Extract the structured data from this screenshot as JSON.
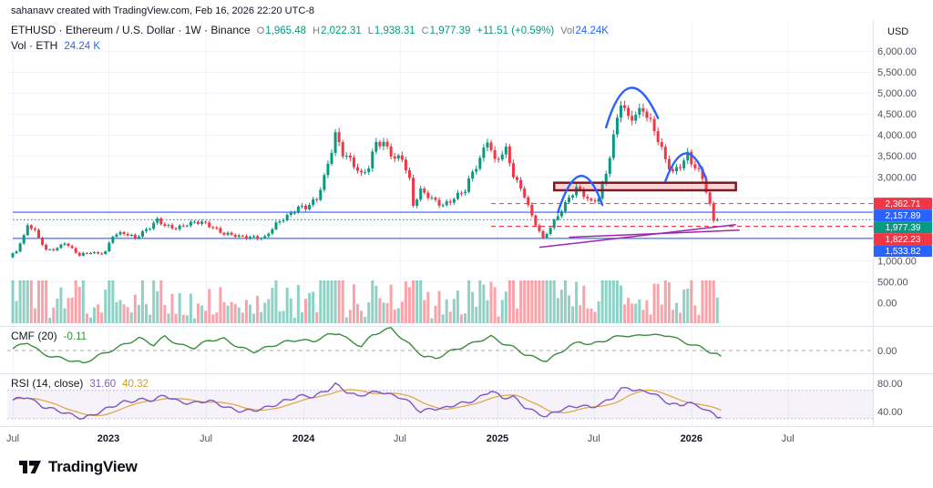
{
  "attribution": "sahanavv created with TradingView.com, Feb 16, 2026 22:20 UTC-8",
  "symbol_header": {
    "title": "ETHUSD · Ethereum / U.S. Dollar · 1W · Binance",
    "ohlc": [
      {
        "label": "O",
        "value": "1,965.48"
      },
      {
        "label": "H",
        "value": "2,022.31"
      },
      {
        "label": "L",
        "value": "1,938.31"
      },
      {
        "label": "C",
        "value": "1,977.39"
      }
    ],
    "change": "+11.51 (+0.59%)",
    "vol_label": "Vol",
    "vol_value": "24.24K"
  },
  "volume_row": {
    "label": "Vol · ETH",
    "value": "24.24 K"
  },
  "indicators": {
    "cmf": {
      "label": "CMF (20)",
      "value": "-0.11"
    },
    "rsi": {
      "label": "RSI (14, close)",
      "value": "31.60",
      "ma_value": "40.32"
    }
  },
  "logo_text": "TradingView",
  "axes": {
    "currency": "USD",
    "price_ticks": [
      {
        "price": 6000,
        "label": "6,000.00"
      },
      {
        "price": 5500,
        "label": "5,500.00"
      },
      {
        "price": 5000,
        "label": "5,000.00"
      },
      {
        "price": 4500,
        "label": "4,500.00"
      },
      {
        "price": 4000,
        "label": "4,000.00"
      },
      {
        "price": 3500,
        "label": "3,500.00"
      },
      {
        "price": 3000,
        "label": "3,000.00"
      },
      {
        "price": 1000,
        "label": "1,000.00"
      },
      {
        "price": 500,
        "label": "500.00"
      },
      {
        "price": 0,
        "label": "0.00"
      }
    ],
    "grid_prices": [
      500,
      1000,
      1500,
      2000,
      2500,
      3000,
      3500,
      4000,
      4500,
      5000,
      5500,
      6000
    ],
    "cmf_ticks": [
      {
        "label": "0.00",
        "value": 0
      }
    ],
    "rsi_ticks": [
      {
        "label": "80.00",
        "value": 80
      },
      {
        "label": "40.00",
        "value": 40
      }
    ],
    "time_ticks": [
      {
        "label": "Jul",
        "week": 0,
        "year": false
      },
      {
        "label": "2023",
        "week": 25.8,
        "year": true
      },
      {
        "label": "Jul",
        "week": 52.1,
        "year": false
      },
      {
        "label": "2024",
        "week": 78.4,
        "year": true
      },
      {
        "label": "Jul",
        "week": 104.4,
        "year": false
      },
      {
        "label": "2025",
        "week": 130.7,
        "year": true
      },
      {
        "label": "Jul",
        "week": 156.7,
        "year": false
      },
      {
        "label": "2026",
        "week": 183.0,
        "year": true
      },
      {
        "label": "Jul",
        "week": 209.0,
        "year": false
      }
    ]
  },
  "price_lines": [
    {
      "label": "2,362.71",
      "price": 2362.71,
      "color": "#f23645",
      "style": "dashed",
      "from_week": 129
    },
    {
      "label": "2,157.89",
      "price": 2157.89,
      "color": "#2962ff",
      "style": "solid",
      "from_week": 0
    },
    {
      "label": "1,977.39",
      "price": 1977.39,
      "color": "#089981",
      "style": "dotted",
      "from_week": 0
    },
    {
      "label": "1,822.23",
      "price": 1822.23,
      "color": "#f23645",
      "style": "dashed",
      "from_week": 129
    },
    {
      "label": "1,533.82",
      "price": 1533.82,
      "color": "#2962ff",
      "style": "solid",
      "from_week": 0
    }
  ],
  "drawings": {
    "rectangle": {
      "from_week": 146,
      "to_week": 195,
      "top_price": 2860,
      "bottom_price": 2680
    },
    "arcs": [
      {
        "from_week": 147,
        "from_price": 2150,
        "apex_week": 153,
        "apex_price": 3020,
        "to_week": 159,
        "to_price": 2330
      },
      {
        "from_week": 160,
        "from_price": 4180,
        "apex_week": 166.5,
        "apex_price": 5120,
        "to_week": 174,
        "to_price": 4400
      },
      {
        "from_week": 176,
        "from_price": 2900,
        "apex_week": 181.5,
        "apex_price": 3560,
        "to_week": 187,
        "to_price": 2950
      }
    ],
    "trendlines": [
      {
        "from_week": 142,
        "from_price": 1320,
        "to_week": 195,
        "to_price": 1860
      },
      {
        "from_week": 150,
        "from_price": 1560,
        "to_week": 196,
        "to_price": 1730
      }
    ]
  },
  "chart_data": {
    "type": "candlestick",
    "title": "ETHUSD · Ethereum / U.S. Dollar · 1W · Binance",
    "xlabel": "time (weekly, Jul 2022 - Feb 2026, axis extends to Jul 2026)",
    "ylabel": "price (USD)",
    "ylim": [
      0,
      6500
    ],
    "grid": true,
    "last_candle": {
      "open": 1965.48,
      "high": 2022.31,
      "low": 1938.31,
      "close": 1977.39,
      "change": "+11.51 (+0.59%)",
      "volume": "24.24 K"
    },
    "price_path_weekly_anchors": [
      [
        0,
        1060
      ],
      [
        2,
        1250
      ],
      [
        4,
        1600
      ],
      [
        5,
        1900
      ],
      [
        7,
        1700
      ],
      [
        10,
        1230
      ],
      [
        13,
        1300
      ],
      [
        15,
        1460
      ],
      [
        17,
        1280
      ],
      [
        19,
        1120
      ],
      [
        22,
        1200
      ],
      [
        24,
        1180
      ],
      [
        26,
        1230
      ],
      [
        28,
        1600
      ],
      [
        31,
        1640
      ],
      [
        34,
        1560
      ],
      [
        36,
        1700
      ],
      [
        38,
        1800
      ],
      [
        40,
        1950
      ],
      [
        42,
        1820
      ],
      [
        45,
        1800
      ],
      [
        48,
        1880
      ],
      [
        52,
        1900
      ],
      [
        55,
        1820
      ],
      [
        58,
        1650
      ],
      [
        62,
        1560
      ],
      [
        66,
        1580
      ],
      [
        69,
        1550
      ],
      [
        72,
        1850
      ],
      [
        75,
        2080
      ],
      [
        78,
        2300
      ],
      [
        80,
        2250
      ],
      [
        83,
        2450
      ],
      [
        85,
        3000
      ],
      [
        87,
        3700
      ],
      [
        88,
        4050
      ],
      [
        90,
        3550
      ],
      [
        93,
        3250
      ],
      [
        95,
        3050
      ],
      [
        97,
        3300
      ],
      [
        99,
        3850
      ],
      [
        101,
        3750
      ],
      [
        104,
        3400
      ],
      [
        106,
        3500
      ],
      [
        108,
        2950
      ],
      [
        109,
        2350
      ],
      [
        111,
        2650
      ],
      [
        114,
        2450
      ],
      [
        117,
        2350
      ],
      [
        120,
        2500
      ],
      [
        123,
        2650
      ],
      [
        125,
        3100
      ],
      [
        127,
        3450
      ],
      [
        129,
        3950
      ],
      [
        131,
        3350
      ],
      [
        134,
        3600
      ],
      [
        136,
        3050
      ],
      [
        139,
        2600
      ],
      [
        141,
        2050
      ],
      [
        144,
        1500
      ],
      [
        146,
        1800
      ],
      [
        149,
        2250
      ],
      [
        151,
        2500
      ],
      [
        153,
        2700
      ],
      [
        155,
        2550
      ],
      [
        157,
        2400
      ],
      [
        159,
        2550
      ],
      [
        161,
        3100
      ],
      [
        163,
        3900
      ],
      [
        165,
        4750
      ],
      [
        167,
        4400
      ],
      [
        169,
        4550
      ],
      [
        171,
        4650
      ],
      [
        173,
        4250
      ],
      [
        175,
        3850
      ],
      [
        177,
        3400
      ],
      [
        179,
        3150
      ],
      [
        181,
        3300
      ],
      [
        183,
        3500
      ],
      [
        184,
        3300
      ],
      [
        186,
        3100
      ],
      [
        187,
        2950
      ],
      [
        188,
        2700
      ],
      [
        189,
        2350
      ],
      [
        190,
        1965
      ],
      [
        191,
        1977
      ]
    ],
    "volume_spike_weeks": {
      "4": 1.5,
      "5": 1.6,
      "9": 1.5,
      "19": 1.9,
      "40": 1.3,
      "75": 1.3,
      "86": 1.5,
      "87": 1.7,
      "88": 1.6,
      "99": 1.4,
      "108": 1.6,
      "109": 1.8,
      "129": 1.5,
      "141": 1.4,
      "144": 1.7,
      "163": 1.4,
      "165": 1.5,
      "183": 1.2,
      "188": 1.5,
      "189": 2.2,
      "190": 2.6
    },
    "cmf_20_anchors": [
      [
        0,
        0.02
      ],
      [
        4,
        0.15
      ],
      [
        8,
        -0.05
      ],
      [
        12,
        -0.12
      ],
      [
        16,
        -0.2
      ],
      [
        19,
        -0.26
      ],
      [
        23,
        -0.1
      ],
      [
        26,
        0.0
      ],
      [
        30,
        0.12
      ],
      [
        34,
        0.22
      ],
      [
        38,
        0.1
      ],
      [
        41,
        0.27
      ],
      [
        45,
        0.12
      ],
      [
        49,
        0.05
      ],
      [
        53,
        0.18
      ],
      [
        57,
        0.22
      ],
      [
        61,
        0.08
      ],
      [
        65,
        -0.02
      ],
      [
        69,
        0.05
      ],
      [
        73,
        0.15
      ],
      [
        77,
        0.22
      ],
      [
        81,
        0.18
      ],
      [
        85,
        0.28
      ],
      [
        88,
        0.32
      ],
      [
        91,
        0.18
      ],
      [
        94,
        0.1
      ],
      [
        97,
        0.3
      ],
      [
        100,
        0.38
      ],
      [
        102,
        0.4
      ],
      [
        105,
        0.22
      ],
      [
        108,
        0.05
      ],
      [
        111,
        -0.1
      ],
      [
        114,
        -0.14
      ],
      [
        117,
        -0.05
      ],
      [
        120,
        0.02
      ],
      [
        123,
        0.1
      ],
      [
        126,
        0.2
      ],
      [
        129,
        0.28
      ],
      [
        132,
        0.15
      ],
      [
        135,
        0.05
      ],
      [
        138,
        -0.08
      ],
      [
        141,
        -0.15
      ],
      [
        144,
        -0.18
      ],
      [
        147,
        -0.05
      ],
      [
        150,
        0.08
      ],
      [
        153,
        0.15
      ],
      [
        156,
        0.1
      ],
      [
        159,
        0.18
      ],
      [
        162,
        0.26
      ],
      [
        165,
        0.3
      ],
      [
        168,
        0.26
      ],
      [
        171,
        0.3
      ],
      [
        174,
        0.27
      ],
      [
        177,
        0.3
      ],
      [
        180,
        0.2
      ],
      [
        183,
        0.12
      ],
      [
        186,
        0.04
      ],
      [
        188,
        -0.04
      ],
      [
        190,
        -0.09
      ],
      [
        191,
        -0.11
      ]
    ],
    "cmf_last": -0.11,
    "rsi_14_anchors": [
      [
        0,
        55
      ],
      [
        4,
        62
      ],
      [
        8,
        48
      ],
      [
        12,
        40
      ],
      [
        16,
        35
      ],
      [
        19,
        32
      ],
      [
        23,
        38
      ],
      [
        26,
        44
      ],
      [
        30,
        54
      ],
      [
        34,
        58
      ],
      [
        38,
        55
      ],
      [
        41,
        62
      ],
      [
        45,
        55
      ],
      [
        49,
        52
      ],
      [
        53,
        54
      ],
      [
        57,
        48
      ],
      [
        61,
        42
      ],
      [
        65,
        40
      ],
      [
        69,
        46
      ],
      [
        73,
        56
      ],
      [
        77,
        61
      ],
      [
        81,
        60
      ],
      [
        85,
        72
      ],
      [
        87,
        80
      ],
      [
        90,
        68
      ],
      [
        93,
        60
      ],
      [
        96,
        66
      ],
      [
        99,
        70
      ],
      [
        102,
        64
      ],
      [
        105,
        58
      ],
      [
        108,
        48
      ],
      [
        110,
        40
      ],
      [
        113,
        46
      ],
      [
        116,
        44
      ],
      [
        119,
        48
      ],
      [
        122,
        52
      ],
      [
        125,
        58
      ],
      [
        127,
        65
      ],
      [
        129,
        70
      ],
      [
        132,
        58
      ],
      [
        135,
        60
      ],
      [
        138,
        48
      ],
      [
        141,
        40
      ],
      [
        144,
        32
      ],
      [
        147,
        40
      ],
      [
        150,
        46
      ],
      [
        153,
        50
      ],
      [
        156,
        46
      ],
      [
        159,
        50
      ],
      [
        162,
        60
      ],
      [
        164,
        72
      ],
      [
        166,
        76
      ],
      [
        168,
        70
      ],
      [
        171,
        68
      ],
      [
        174,
        60
      ],
      [
        177,
        52
      ],
      [
        180,
        50
      ],
      [
        182,
        54
      ],
      [
        184,
        48
      ],
      [
        186,
        44
      ],
      [
        188,
        38
      ],
      [
        190,
        33
      ],
      [
        191,
        31.6
      ]
    ],
    "rsi_last": 31.6,
    "rsi_ma_last": 40.32
  },
  "colors": {
    "up": "#089981",
    "down": "#f23645",
    "vol_up": "rgba(8,153,129,0.45)",
    "vol_down": "rgba(242,54,69,0.45)",
    "grid": "#f0f3fa",
    "separator": "#e0e3eb",
    "axis_text": "#50535e",
    "axis_text_dark": "#131722",
    "blue": "#2962ff",
    "red": "#f23645",
    "green": "#089981",
    "cmf_line": "#388e3c",
    "zero_line": "rgba(120,123,134,0.65)",
    "rsi_line": "#7e57c2",
    "rsi_ma": "#e0a43b",
    "rsi_band_fill": "rgba(126,87,194,0.08)",
    "rsi_band_line": "rgba(126,87,194,0.4)",
    "arc": "#2962ff",
    "rect_stroke": "#7e1a26",
    "rect_fill": "rgba(242,54,69,0.22)",
    "trend": "#9c27b0"
  }
}
